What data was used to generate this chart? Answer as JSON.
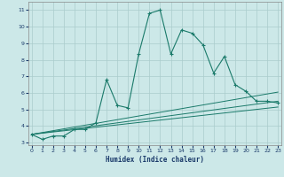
{
  "xlabel": "Humidex (Indice chaleur)",
  "bg_color": "#cce8e8",
  "line_color": "#1a7a6a",
  "grid_color": "#aacccc",
  "x_main": [
    0,
    1,
    2,
    3,
    4,
    5,
    6,
    7,
    8,
    9,
    10,
    11,
    12,
    13,
    14,
    15,
    16,
    17,
    18,
    19,
    20,
    21,
    22,
    23
  ],
  "y_main": [
    3.5,
    3.2,
    3.4,
    3.4,
    3.8,
    3.8,
    4.2,
    6.8,
    5.25,
    5.1,
    8.35,
    10.8,
    11.0,
    8.35,
    9.8,
    9.6,
    8.9,
    7.2,
    8.2,
    6.5,
    6.1,
    5.5,
    5.5,
    5.4
  ],
  "trend1_x": [
    0,
    23
  ],
  "trend1_y": [
    3.5,
    5.15
  ],
  "trend2_x": [
    0,
    23
  ],
  "trend2_y": [
    3.5,
    5.5
  ],
  "trend3_x": [
    0,
    23
  ],
  "trend3_y": [
    3.5,
    6.05
  ],
  "ylim": [
    2.85,
    11.5
  ],
  "yticks": [
    3,
    4,
    5,
    6,
    7,
    8,
    9,
    10,
    11
  ],
  "xlim": [
    -0.3,
    23.3
  ],
  "xticks": [
    0,
    1,
    2,
    3,
    4,
    5,
    6,
    7,
    8,
    9,
    10,
    11,
    12,
    13,
    14,
    15,
    16,
    17,
    18,
    19,
    20,
    21,
    22,
    23
  ],
  "xlabel_color": "#1a3a6a",
  "tick_color": "#1a3a6a"
}
